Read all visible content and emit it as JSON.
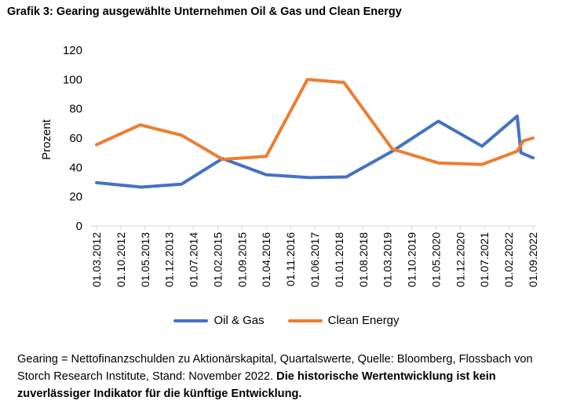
{
  "title": "Grafik 3: Gearing ausgewählte Unternehmen Oil & Gas und Clean Energy",
  "chart_data": {
    "type": "line",
    "title": "Grafik 3: Gearing ausgewählte Unternehmen Oil & Gas und Clean Energy",
    "xlabel": "",
    "ylabel": "Prozent",
    "ylim": [
      0,
      120
    ],
    "yticks": [
      0,
      20,
      40,
      60,
      80,
      100,
      120
    ],
    "x_tick_labels": [
      "01.03.2012",
      "01.10.2012",
      "01.05.2013",
      "01.12.2013",
      "01.07.2014",
      "01.02.2015",
      "01.09.2015",
      "01.04.2016",
      "01.11.2016",
      "01.06.2017",
      "01.01.2018",
      "01.08.2018",
      "01.03.2019",
      "01.10.2019",
      "01.05.2020",
      "01.12.2020",
      "01.07.2021",
      "01.02.2022",
      "01.09.2022"
    ],
    "x_range": [
      0,
      18
    ],
    "grid": false,
    "legend": "bottom",
    "series": [
      {
        "name": "Oil & Gas",
        "color": "#4472C4",
        "x": [
          0,
          1.85,
          3.5,
          5.2,
          7,
          8.8,
          10.3,
          12.2,
          14.1,
          15.9,
          17.35,
          17.5,
          18
        ],
        "values": [
          29.5,
          26.5,
          28.5,
          46,
          35,
          33,
          33.5,
          51,
          71.5,
          54.5,
          75,
          50,
          46.5
        ]
      },
      {
        "name": "Clean Energy",
        "color": "#ED7D31",
        "x": [
          0,
          1.8,
          3.5,
          5.2,
          7,
          8.7,
          10.2,
          12.2,
          14.1,
          15.9,
          17.35,
          17.6,
          18
        ],
        "values": [
          55.5,
          69,
          62,
          45.5,
          47.5,
          100,
          98,
          52.5,
          43,
          42,
          51,
          58,
          60
        ]
      }
    ]
  },
  "legend": {
    "items": [
      {
        "label": "Oil & Gas",
        "color": "#4472C4"
      },
      {
        "label": "Clean Energy",
        "color": "#ED7D31"
      }
    ]
  },
  "footnote": {
    "normal": "Gearing = Nettofinanzschulden zu Aktionärskapital, Quartalswerte, Quelle: Bloomberg, Flossbach von Storch Research Institute, Stand: November 2022. ",
    "bold": "Die historische Wertentwicklung ist kein zuverlässiger Indikator für die künftige Entwicklung."
  }
}
